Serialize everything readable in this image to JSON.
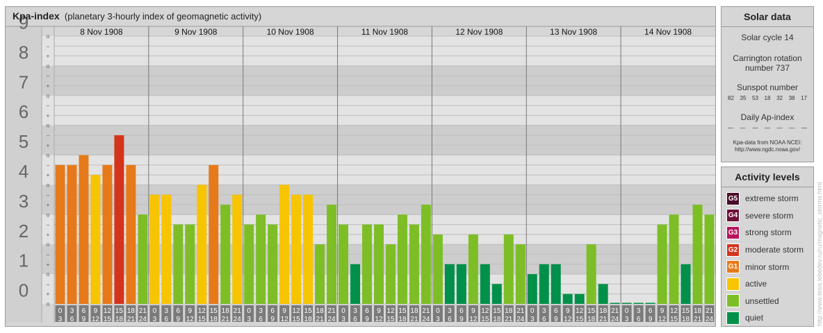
{
  "header": {
    "title": "Kpa-index",
    "subtitle": "(planetary 3-hourly index of geomagnetic activity)"
  },
  "chart_data": {
    "type": "bar",
    "title": "Kpa-index",
    "subtitle": "(planetary 3-hourly index of geomagnetic activity)",
    "ylim": [
      0,
      9
    ],
    "y_ticks": [
      "0",
      "1",
      "2",
      "3",
      "4",
      "5",
      "6",
      "7",
      "8",
      "9"
    ],
    "sub_ticks": [
      "o",
      "+",
      "–",
      "o",
      "+",
      "–",
      "o",
      "+",
      "–",
      "o",
      "+",
      "–",
      "o",
      "+",
      "–",
      "o",
      "+",
      "–",
      "o",
      "+",
      "–",
      "o",
      "+",
      "–",
      "o",
      "+",
      "–",
      "o"
    ],
    "days": [
      "8 Nov 1908",
      "9 Nov 1908",
      "10 Nov 1908",
      "11 Nov 1908",
      "12 Nov 1908",
      "13 Nov 1908",
      "14 Nov 1908"
    ],
    "interval_start": [
      "0",
      "3",
      "6",
      "9",
      "12",
      "15",
      "18",
      "21"
    ],
    "interval_end": [
      "3",
      "6",
      "9",
      "12",
      "15",
      "18",
      "21",
      "24"
    ],
    "values": [
      [
        4.667,
        4.667,
        5.0,
        4.333,
        4.667,
        5.667,
        4.667,
        3.0
      ],
      [
        3.667,
        3.667,
        2.667,
        2.667,
        4.0,
        4.667,
        3.333,
        3.667
      ],
      [
        2.667,
        3.0,
        2.667,
        4.0,
        3.667,
        3.667,
        2.0,
        3.333
      ],
      [
        2.667,
        1.333,
        2.667,
        2.667,
        2.0,
        3.0,
        2.667,
        3.333
      ],
      [
        2.333,
        1.333,
        1.333,
        2.333,
        1.333,
        0.667,
        2.333,
        2.0
      ],
      [
        1.0,
        1.333,
        1.333,
        0.333,
        0.333,
        2.0,
        0.667,
        0.0
      ],
      [
        0.0,
        0.0,
        0.0,
        2.667,
        3.0,
        1.333,
        3.333,
        3.0
      ]
    ],
    "grid": true
  },
  "activity_levels": [
    {
      "badge": "G5",
      "label": "extreme storm",
      "color": "#4a0b2a"
    },
    {
      "badge": "G4",
      "label": "severe storm",
      "color": "#6e0f3a"
    },
    {
      "badge": "G3",
      "label": "strong storm",
      "color": "#b8145c"
    },
    {
      "badge": "G2",
      "label": "moderate storm",
      "color": "#d4341c"
    },
    {
      "badge": "G1",
      "label": "minor storm",
      "color": "#e67a1b"
    },
    {
      "badge": "",
      "label": "active",
      "color": "#f7c400"
    },
    {
      "badge": "",
      "label": "unsettled",
      "color": "#7dbe26"
    },
    {
      "badge": "",
      "label": "quiet",
      "color": "#00904a"
    }
  ],
  "solar": {
    "title": "Solar data",
    "cycle": "Solar cycle 14",
    "carrington_line1": "Carrington rotation",
    "carrington_line2": "number 737",
    "sunspot_label": "Sunspot number",
    "sunspot_values": [
      "82",
      "35",
      "53",
      "18",
      "32",
      "38",
      "17"
    ],
    "ap_label": "Daily Ap-index",
    "ap_values": [
      "—",
      "—",
      "—",
      "—",
      "—",
      "—",
      "—"
    ],
    "source_line1": "Kpa-data from NOAA NCEI:",
    "source_line2": "http://www.ngdc.noaa.gov/"
  },
  "activity_title": "Activity levels",
  "credit": "http://www.tesis.lebedev.ru/ru/magnetic_storms.html"
}
